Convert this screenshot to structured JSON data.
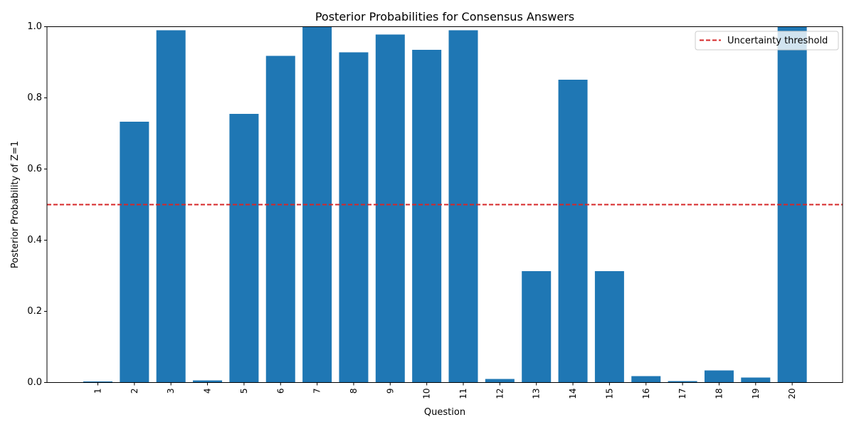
{
  "chart_data": {
    "type": "bar",
    "title": "Posterior Probabilities for Consensus Answers",
    "xlabel": "Question",
    "ylabel": "Posterior Probability of Z=1",
    "categories": [
      "1",
      "2",
      "3",
      "4",
      "5",
      "6",
      "7",
      "8",
      "9",
      "10",
      "11",
      "12",
      "13",
      "14",
      "15",
      "16",
      "17",
      "18",
      "19",
      "20"
    ],
    "values": [
      0.003,
      0.733,
      0.99,
      0.006,
      0.755,
      0.918,
      1.0,
      0.928,
      0.978,
      0.935,
      0.99,
      0.01,
      0.313,
      0.851,
      0.313,
      0.018,
      0.004,
      0.034,
      0.014,
      1.0
    ],
    "ylim": [
      0,
      1
    ],
    "yticks": [
      "0.0",
      "0.2",
      "0.4",
      "0.6",
      "0.8",
      "1.0"
    ],
    "threshold": {
      "value": 0.5,
      "label": "Uncertainty threshold",
      "color": "#d62728",
      "style": "dashed"
    },
    "bar_color": "#1f77b4",
    "grid": false,
    "legend_position": "top-right"
  }
}
